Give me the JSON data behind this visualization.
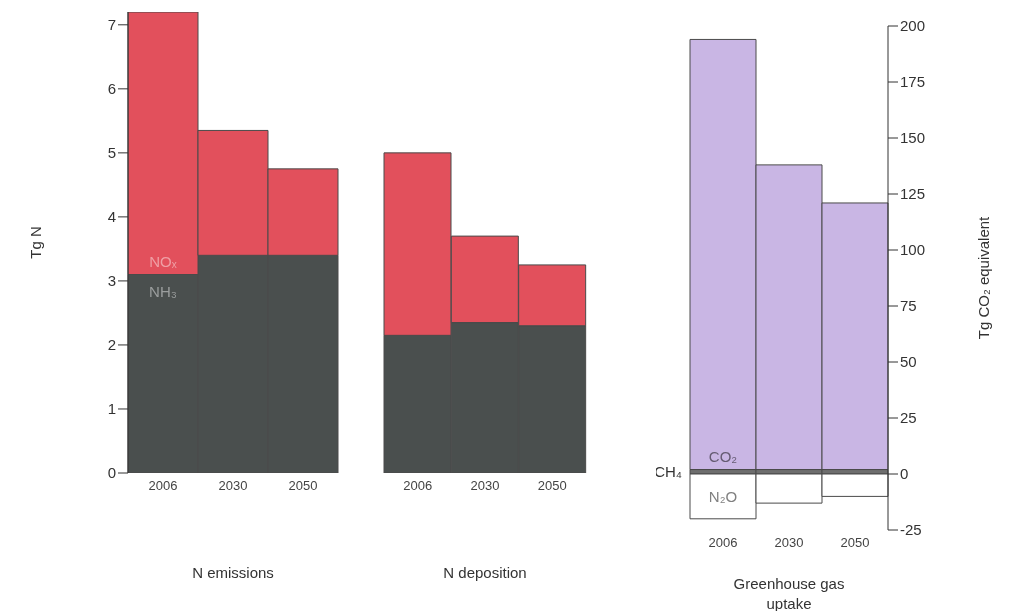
{
  "chart_data": [
    {
      "type": "bar",
      "stacked": true,
      "categories": [
        "2006",
        "2030",
        "2050"
      ],
      "xlabel": "N emissions",
      "ylabel": "Tg N",
      "ylim": [
        0,
        7.2
      ],
      "yticks": [
        0,
        1,
        2,
        3,
        4,
        5,
        6,
        7
      ],
      "grid": false,
      "legend": false,
      "series": [
        {
          "name": "NH₃",
          "color": "#4a4f4e",
          "values": [
            3.1,
            3.4,
            3.4
          ]
        },
        {
          "name": "NOₓ",
          "color": "#e2505c",
          "values": [
            4.1,
            1.95,
            1.35
          ]
        }
      ]
    },
    {
      "type": "bar",
      "stacked": true,
      "categories": [
        "2006",
        "2030",
        "2050"
      ],
      "xlabel": "N deposition",
      "ylim": [
        0,
        7
      ],
      "yticks": [
        0,
        1,
        2,
        3,
        4,
        5,
        6,
        7
      ],
      "tick_labels": "x",
      "grid": false,
      "legend": false,
      "series": [
        {
          "color": "#4a4f4e",
          "values": [
            2.15,
            2.35,
            2.3
          ]
        },
        {
          "color": "#e2505c",
          "values": [
            2.85,
            1.35,
            0.95
          ]
        }
      ]
    },
    {
      "type": "bar",
      "stacked": true,
      "categories": [
        "2006",
        "2030",
        "2050"
      ],
      "xlabel": "Greenhouse gas uptake",
      "y2label": "Tg CO₂ equivalent",
      "y2lim": [
        -25,
        200
      ],
      "y2ticks": [
        -25,
        0,
        25,
        50,
        75,
        100,
        125,
        150,
        175,
        200
      ],
      "grid": false,
      "legend": false,
      "series": [
        {
          "name": "CH₄",
          "color": "#6e6e6e",
          "axis": "y2",
          "values": [
            2,
            2,
            2
          ]
        },
        {
          "name": "CO₂",
          "color": "#c9b6e4",
          "axis": "y2",
          "values": [
            192,
            136,
            119
          ]
        },
        {
          "name": "N₂O",
          "color": "#ffffff",
          "axis": "y2",
          "values": [
            -20,
            -13,
            -10
          ]
        }
      ]
    }
  ]
}
